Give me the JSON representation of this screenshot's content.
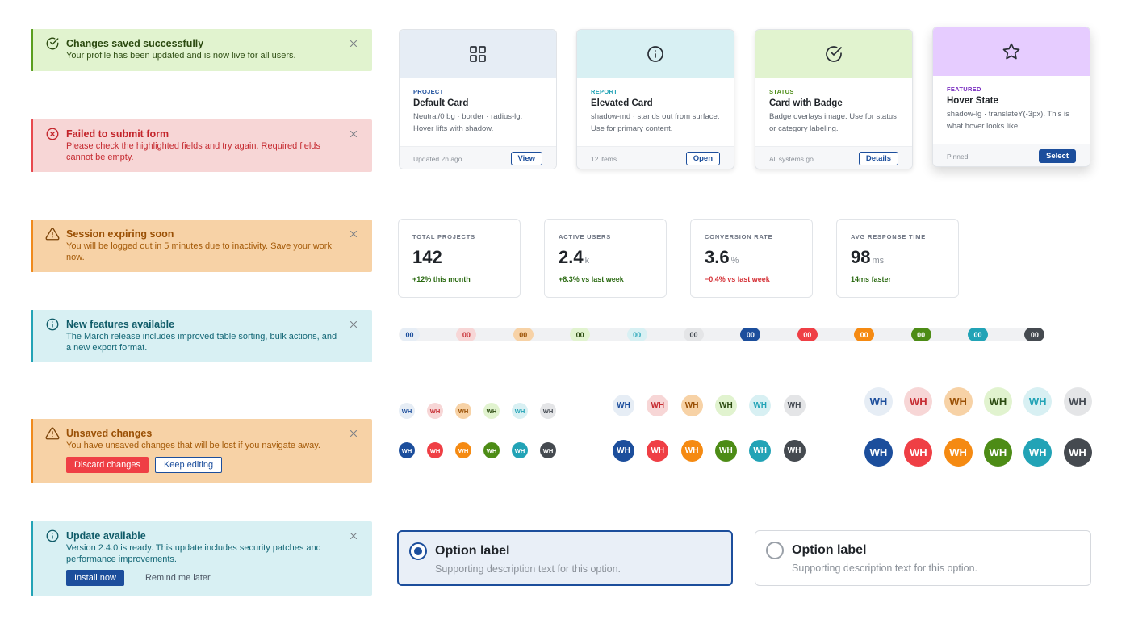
{
  "alerts": [
    {
      "kind": "success",
      "icon": "check-circle-icon",
      "title": "Changes saved successfully",
      "body": "Your profile has been updated and is now live for all users."
    },
    {
      "kind": "error",
      "icon": "x-circle-icon",
      "title": "Failed to submit form",
      "body": "Please check the highlighted fields and try again. Required fields cannot be empty."
    },
    {
      "kind": "warning",
      "icon": "warning-triangle-icon",
      "title": "Session expiring soon",
      "body": "You will be logged out in 5 minutes due to inactivity. Save your work now."
    },
    {
      "kind": "info",
      "icon": "info-circle-icon",
      "title": "New features available",
      "body": "The March release includes improved table sorting, bulk actions, and a new export format."
    },
    {
      "kind": "warning",
      "icon": "warning-triangle-icon",
      "title": "Unsaved changes",
      "body": "You have unsaved changes that will be lost if you navigate away.",
      "actions": {
        "primary": "Discard changes",
        "secondary": "Keep editing"
      }
    },
    {
      "kind": "info",
      "icon": "info-circle-icon",
      "title": "Update available",
      "body": "Version 2.4.0 is ready. This update includes security patches and performance improvements.",
      "actions": {
        "primary": "Install now",
        "secondary": "Remind me later"
      }
    }
  ],
  "cards": [
    {
      "media_color": "#e6edf5",
      "icon": "grid-icon",
      "kicker": "PROJECT",
      "kicker_color": "#1c4e9c",
      "title": "Default Card",
      "desc": "Neutral/0 bg · border · radius-lg. Hover lifts with shadow.",
      "meta": "Updated 2h ago",
      "button": "View"
    },
    {
      "media_color": "#d8f0f3",
      "icon": "info-icon",
      "kicker": "REPORT",
      "kicker_color": "#22a3b6",
      "title": "Elevated Card",
      "desc": "shadow-md · stands out from surface. Use for primary content.",
      "meta": "12 items",
      "button": "Open"
    },
    {
      "media_color": "#e1f3cf",
      "icon": "check-circle-icon",
      "kicker": "STATUS",
      "kicker_color": "#4d8c16",
      "title": "Card with Badge",
      "desc": "Badge overlays image. Use for status or category labeling.",
      "meta": "All systems go",
      "button": "Details"
    },
    {
      "media_color": "#e6ccff",
      "icon": "star-icon",
      "kicker": "FEATURED",
      "kicker_color": "#7a2fc0",
      "title": "Hover State",
      "desc": "shadow-lg · translateY(-3px). This is what hover looks like.",
      "meta": "Pinned",
      "button": "Select"
    }
  ],
  "stats": [
    {
      "label": "TOTAL PROJECTS",
      "value": "142",
      "unit": "",
      "delta": "+12% this month",
      "delta_color": "#2b6a12"
    },
    {
      "label": "ACTIVE USERS",
      "value": "2.4",
      "unit": "k",
      "delta": "+8.3% vs last week",
      "delta_color": "#2b6a12"
    },
    {
      "label": "CONVERSION RATE",
      "value": "3.6",
      "unit": "%",
      "delta": "−0.4% vs last week",
      "delta_color": "#d42f35"
    },
    {
      "label": "AVG RESPONSE TIME",
      "value": "98",
      "unit": "ms",
      "delta": "14ms faster",
      "delta_color": "#2b6a12"
    }
  ],
  "badges": [
    {
      "text": "00",
      "bg": "#e6edf5",
      "fg": "#1c4e9c"
    },
    {
      "text": "00",
      "bg": "#f7d6d6",
      "fg": "#c62c32"
    },
    {
      "text": "00",
      "bg": "#f7d2a6",
      "fg": "#9a5005"
    },
    {
      "text": "00",
      "bg": "#e1f3cf",
      "fg": "#2b4a10"
    },
    {
      "text": "00",
      "bg": "#d8f0f3",
      "fg": "#22a3b6"
    },
    {
      "text": "00",
      "bg": "#e4e5e7",
      "fg": "#444a52"
    },
    {
      "text": "00",
      "bg": "#1c4e9c",
      "fg": "#ffffff"
    },
    {
      "text": "00",
      "bg": "#ef3f45",
      "fg": "#ffffff"
    },
    {
      "text": "00",
      "bg": "#f58a12",
      "fg": "#ffffff"
    },
    {
      "text": "00",
      "bg": "#4d8c16",
      "fg": "#ffffff"
    },
    {
      "text": "00",
      "bg": "#22a3b6",
      "fg": "#ffffff"
    },
    {
      "text": "00",
      "bg": "#454a50",
      "fg": "#ffffff"
    }
  ],
  "avatars": {
    "initials": "WH",
    "soft": [
      {
        "bg": "#e6edf5",
        "fg": "#1c4e9c"
      },
      {
        "bg": "#f7d6d6",
        "fg": "#c62c32"
      },
      {
        "bg": "#f7d2a6",
        "fg": "#9a5005"
      },
      {
        "bg": "#e1f3cf",
        "fg": "#2b4a10"
      },
      {
        "bg": "#d8f0f3",
        "fg": "#22a3b6"
      },
      {
        "bg": "#e4e5e7",
        "fg": "#444a52"
      }
    ],
    "solid": [
      {
        "bg": "#1c4e9c",
        "fg": "#ffffff"
      },
      {
        "bg": "#ef3f45",
        "fg": "#ffffff"
      },
      {
        "bg": "#f58a12",
        "fg": "#ffffff"
      },
      {
        "bg": "#4d8c16",
        "fg": "#ffffff"
      },
      {
        "bg": "#22a3b6",
        "fg": "#ffffff"
      },
      {
        "bg": "#454a50",
        "fg": "#ffffff"
      }
    ]
  },
  "options": [
    {
      "label": "Option label",
      "desc": "Supporting description text for this option.",
      "selected": true
    },
    {
      "label": "Option label",
      "desc": "Supporting description text for this option.",
      "selected": false
    }
  ],
  "colors": {
    "primary": "#1c4e9c",
    "danger": "#ef3f45"
  }
}
